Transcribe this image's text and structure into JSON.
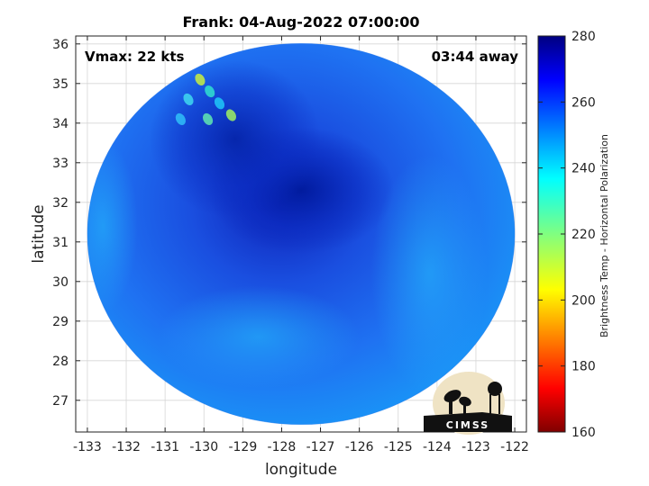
{
  "chart_data": {
    "type": "heatmap",
    "title": "Frank: 04-Aug-2022 07:00:00",
    "xlabel": "longitude",
    "ylabel": "latitude",
    "xlim": [
      -133.3,
      -121.7
    ],
    "ylim": [
      26.2,
      36.2
    ],
    "xticks": [
      -133,
      -132,
      -131,
      -130,
      -129,
      -128,
      -127,
      -126,
      -125,
      -124,
      -123,
      -122
    ],
    "yticks": [
      27,
      28,
      29,
      30,
      31,
      32,
      33,
      34,
      35,
      36
    ],
    "grid": true,
    "annotations": {
      "vmax": "Vmax: 22 kts",
      "time_away": "03:44 away"
    },
    "colorbar": {
      "label": "Brightness Temp - Horizontal Polarization",
      "range": [
        160,
        280
      ],
      "ticks": [
        280,
        260,
        240,
        220,
        200,
        180,
        160
      ],
      "colormap": "jet"
    },
    "swath": {
      "center_lon": -127.5,
      "center_lat": 31.2,
      "radius_deg": 5.5
    },
    "features": [
      {
        "name": "cold-core",
        "lon": -127.5,
        "lat": 32.3,
        "tb": 270
      },
      {
        "name": "warm-patch-nw",
        "lon": -130.1,
        "lat": 35.1,
        "tb": 225
      }
    ],
    "logo": "CIMSS"
  },
  "colors": {
    "background": "#ffffff",
    "axis": "#222222",
    "grid": "#d6d6d6"
  }
}
